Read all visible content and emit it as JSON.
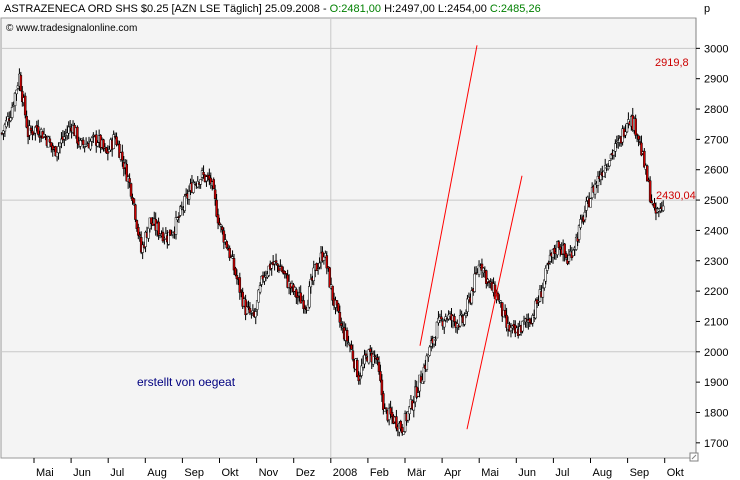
{
  "header": {
    "name": "ASTRAZENECA ORD SHS $0.25 [AZN LSE  Täglich] 25.09.2008 - ",
    "open": "O:2481,00",
    "hl": " H:2497,00 L:2454,00 ",
    "close": "C:2485,26"
  },
  "watermark": "© www.tradesignalonline.com",
  "author": "erstellt von oegeat",
  "axis_unit": "p",
  "channel_labels": {
    "upper": "2919,8",
    "lower": "2430,04"
  },
  "colors": {
    "up_candle": "#ffffff",
    "down_candle": "#cc0000",
    "wick": "#000000",
    "channel": "#ff0000",
    "open_text": "#008000",
    "close_text": "#008000",
    "author_text": "#000080",
    "grid": "#c8c8c8"
  },
  "chart_data": {
    "type": "candlestick",
    "title": "ASTRAZENECA ORD SHS $0.25 [AZN LSE  Täglich] 25.09.2008",
    "ylim": [
      1650,
      3100
    ],
    "y_ticks": [
      1700,
      1800,
      1900,
      2000,
      2100,
      2200,
      2300,
      2400,
      2500,
      2600,
      2700,
      2800,
      2900,
      3000
    ],
    "y_gridlines": [
      2000,
      2500,
      3000
    ],
    "x_ticks": [
      "Mai",
      "Jun",
      "Jul",
      "Aug",
      "Sep",
      "Okt",
      "Nov",
      "Dez",
      "2008",
      "Feb",
      "Mär",
      "Apr",
      "Mai",
      "Jun",
      "Jul",
      "Aug",
      "Sep",
      "Okt"
    ],
    "x_gridline_at": "2008",
    "last": {
      "open": 2481.0,
      "high": 2497.0,
      "low": 2454.0,
      "close": 2485.26
    },
    "price_path": [
      [
        0,
        2720
      ],
      [
        6,
        2790
      ],
      [
        12,
        2910
      ],
      [
        18,
        2720
      ],
      [
        24,
        2740
      ],
      [
        30,
        2710
      ],
      [
        36,
        2660
      ],
      [
        42,
        2700
      ],
      [
        48,
        2750
      ],
      [
        54,
        2680
      ],
      [
        60,
        2690
      ],
      [
        66,
        2700
      ],
      [
        72,
        2650
      ],
      [
        78,
        2710
      ],
      [
        84,
        2620
      ],
      [
        90,
        2520
      ],
      [
        96,
        2330
      ],
      [
        102,
        2430
      ],
      [
        108,
        2400
      ],
      [
        114,
        2380
      ],
      [
        120,
        2420
      ],
      [
        126,
        2490
      ],
      [
        132,
        2560
      ],
      [
        138,
        2580
      ],
      [
        144,
        2560
      ],
      [
        150,
        2420
      ],
      [
        156,
        2340
      ],
      [
        162,
        2240
      ],
      [
        168,
        2140
      ],
      [
        174,
        2110
      ],
      [
        180,
        2250
      ],
      [
        186,
        2290
      ],
      [
        192,
        2280
      ],
      [
        198,
        2220
      ],
      [
        204,
        2180
      ],
      [
        210,
        2160
      ],
      [
        216,
        2270
      ],
      [
        222,
        2330
      ],
      [
        228,
        2180
      ],
      [
        234,
        2080
      ],
      [
        240,
        2020
      ],
      [
        246,
        1920
      ],
      [
        252,
        1990
      ],
      [
        258,
        1980
      ],
      [
        264,
        1800
      ],
      [
        270,
        1780
      ],
      [
        276,
        1750
      ],
      [
        282,
        1820
      ],
      [
        288,
        1900
      ],
      [
        294,
        1990
      ],
      [
        300,
        2080
      ],
      [
        306,
        2120
      ],
      [
        312,
        2100
      ],
      [
        318,
        2100
      ],
      [
        324,
        2200
      ],
      [
        330,
        2300
      ],
      [
        336,
        2220
      ],
      [
        342,
        2180
      ],
      [
        348,
        2080
      ],
      [
        354,
        2060
      ],
      [
        360,
        2090
      ],
      [
        366,
        2120
      ],
      [
        372,
        2200
      ],
      [
        378,
        2300
      ],
      [
        384,
        2360
      ],
      [
        390,
        2300
      ],
      [
        396,
        2370
      ],
      [
        402,
        2460
      ],
      [
        408,
        2540
      ],
      [
        414,
        2600
      ],
      [
        420,
        2650
      ],
      [
        426,
        2690
      ],
      [
        432,
        2780
      ],
      [
        438,
        2730
      ],
      [
        444,
        2590
      ],
      [
        450,
        2450
      ],
      [
        456,
        2480
      ]
    ],
    "channel": {
      "upper": {
        "start": [
          420,
          2020
        ],
        "end": [
          477,
          3010
        ],
        "label": "2919,8"
      },
      "lower": {
        "start": [
          467,
          1745
        ],
        "end": [
          522,
          2580
        ],
        "label": "2430,04"
      }
    }
  }
}
